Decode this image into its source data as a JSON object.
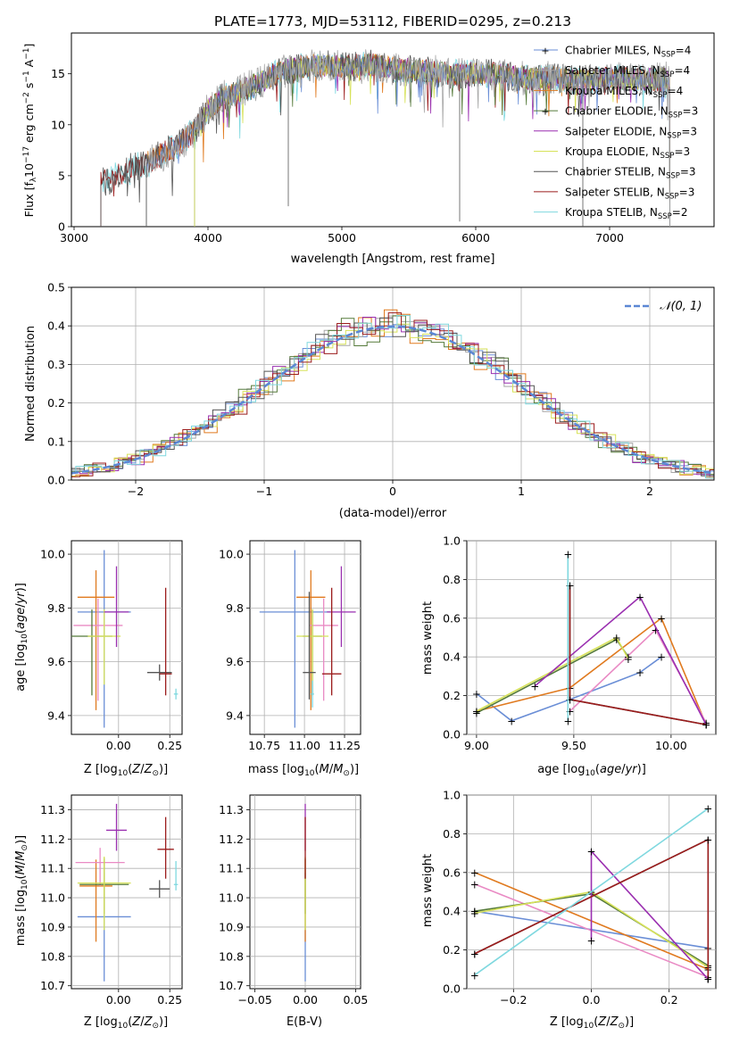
{
  "figure": {
    "title": "PLATE=1773, MJD=53112, FIBERID=0295, z=0.213"
  },
  "legend": {
    "series": [
      {
        "label": "Chabrier MILES, N",
        "sub": "SSP",
        "tail": "=4",
        "color": "#6a8ed6"
      },
      {
        "label": "Salpeter MILES, N",
        "sub": "SSP",
        "tail": "=4",
        "color": "#a7a7a7"
      },
      {
        "label": "Kroupa MILES, N",
        "sub": "SSP",
        "tail": "=4",
        "color": "#e07a1f"
      },
      {
        "label": "Chabrier ELODIE, N",
        "sub": "SSP",
        "tail": "=3",
        "color": "#557a3a"
      },
      {
        "label": "Salpeter ELODIE, N",
        "sub": "SSP",
        "tail": "=3",
        "color": "#9a2fb0"
      },
      {
        "label": "Kroupa ELODIE, N",
        "sub": "SSP",
        "tail": "=3",
        "color": "#d7e25a"
      },
      {
        "label": "Chabrier STELIB, N",
        "sub": "SSP",
        "tail": "=3",
        "color": "#555555"
      },
      {
        "label": "Salpeter STELIB, N",
        "sub": "SSP",
        "tail": "=3",
        "color": "#9b1c1c"
      },
      {
        "label": "Kroupa STELIB, N",
        "sub": "SSP",
        "tail": "=2",
        "color": "#7fd8df"
      }
    ],
    "normal_label": "𝒩(0, 1)"
  },
  "chart_data": [
    {
      "type": "line",
      "name": "spectrum",
      "xlabel": "wavelength [Angstrom, rest frame]",
      "ylabel": "Flux [f_λ10^-17 erg cm^-2 s^-1 A^-1]",
      "xlim": [
        2980,
        7780
      ],
      "ylim": [
        0,
        19
      ],
      "xticks": [
        3000,
        4000,
        5000,
        6000,
        7000
      ],
      "yticks": [
        0,
        5,
        10,
        15
      ],
      "profile": [
        [
          3200,
          4.2
        ],
        [
          3300,
          4.9
        ],
        [
          3400,
          5.7
        ],
        [
          3500,
          6.0
        ],
        [
          3600,
          6.7
        ],
        [
          3700,
          7.4
        ],
        [
          3800,
          8.2
        ],
        [
          3900,
          9.5
        ],
        [
          4000,
          11.5
        ],
        [
          4100,
          12.6
        ],
        [
          4200,
          13.0
        ],
        [
          4300,
          13.7
        ],
        [
          4400,
          14.2
        ],
        [
          4500,
          15.0
        ],
        [
          4600,
          15.4
        ],
        [
          4700,
          15.7
        ],
        [
          4800,
          15.8
        ],
        [
          4900,
          15.8
        ],
        [
          5000,
          15.6
        ],
        [
          5200,
          15.9
        ],
        [
          5400,
          15.5
        ],
        [
          5600,
          15.3
        ],
        [
          5800,
          15.0
        ],
        [
          6000,
          15.1
        ],
        [
          6200,
          14.9
        ],
        [
          6400,
          14.5
        ],
        [
          6600,
          14.6
        ],
        [
          6800,
          14.3
        ],
        [
          7000,
          14.6
        ],
        [
          7200,
          14.4
        ],
        [
          7400,
          14.5
        ]
      ]
    },
    {
      "type": "histogram",
      "name": "residuals",
      "xlabel": "(data-model)/error",
      "ylabel": "Normed distribution",
      "xlim": [
        -2.5,
        2.5
      ],
      "ylim": [
        0,
        0.5
      ],
      "xticks": [
        -2,
        -1,
        0,
        1,
        2
      ],
      "yticks": [
        0,
        0.1,
        0.2,
        0.3,
        0.4,
        0.5
      ],
      "bin_width": 0.1,
      "normal": {
        "mean": 0,
        "sd": 1
      }
    },
    {
      "type": "errorbar",
      "name": "age_vs_Z",
      "xlabel": "Z [log10(Z/Z⊙)]",
      "ylabel": "age [log10(age/yr)]",
      "xlim": [
        -0.23,
        0.31
      ],
      "ylim": [
        9.33,
        10.05
      ],
      "xticks": [
        0.0,
        0.25
      ],
      "yticks": [
        9.4,
        9.6,
        9.8,
        10.0
      ],
      "points": [
        {
          "x": -0.07,
          "y": 9.785,
          "xerr": 0.13,
          "yerr": [
            0.43,
            0.23
          ],
          "color": "#6a8ed6"
        },
        {
          "x": -0.11,
          "y": 9.84,
          "xerr": 0.09,
          "yerr": [
            0.42,
            0.1
          ],
          "color": "#e07a1f"
        },
        {
          "x": -0.1,
          "y": 9.735,
          "xerr": 0.12,
          "yerr": [
            0.28,
            0.1
          ],
          "color": "#e98ac4"
        },
        {
          "x": -0.13,
          "y": 9.695,
          "xerr": 0.1,
          "yerr": [
            0.22,
            0.1
          ],
          "color": "#557a3a"
        },
        {
          "x": -0.07,
          "y": 9.695,
          "xerr": 0.08,
          "yerr": [
            0.18,
            0.1
          ],
          "color": "#d7e25a"
        },
        {
          "x": -0.01,
          "y": 9.785,
          "xerr": 0.06,
          "yerr": [
            0.13,
            0.17
          ],
          "color": "#9a2fb0"
        },
        {
          "x": 0.2,
          "y": 9.56,
          "xerr": 0.06,
          "yerr": [
            0.03,
            0.03
          ],
          "color": "#555555"
        },
        {
          "x": 0.23,
          "y": 9.555,
          "xerr": 0.03,
          "yerr": [
            0.08,
            0.32
          ],
          "color": "#9b1c1c"
        },
        {
          "x": 0.28,
          "y": 9.48,
          "xerr": 0.01,
          "yerr": [
            0.02,
            0.02
          ],
          "color": "#7fd8df"
        }
      ]
    },
    {
      "type": "errorbar",
      "name": "age_vs_mass",
      "xlabel": "mass [log10(M/M⊙)]",
      "ylabel": "",
      "xlim": [
        10.66,
        11.35
      ],
      "ylim": [
        9.33,
        10.05
      ],
      "xticks": [
        10.75,
        11.0,
        11.25
      ],
      "yticks": [
        9.4,
        9.6,
        9.8,
        10.0
      ],
      "points": [
        {
          "x": 10.94,
          "y": 9.785,
          "xerr": 0.22,
          "yerr": [
            0.43,
            0.23
          ],
          "color": "#6a8ed6"
        },
        {
          "x": 11.04,
          "y": 9.84,
          "xerr": 0.09,
          "yerr": [
            0.42,
            0.1
          ],
          "color": "#e07a1f"
        },
        {
          "x": 11.12,
          "y": 9.735,
          "xerr": 0.09,
          "yerr": [
            0.28,
            0.1
          ],
          "color": "#e98ac4"
        },
        {
          "x": 11.05,
          "y": 9.695,
          "xerr": 0.06,
          "yerr": [
            0.22,
            0.1
          ],
          "color": "#557a3a"
        },
        {
          "x": 11.05,
          "y": 9.695,
          "xerr": 0.1,
          "yerr": [
            0.18,
            0.1
          ],
          "color": "#d7e25a"
        },
        {
          "x": 11.23,
          "y": 9.785,
          "xerr": 0.09,
          "yerr": [
            0.13,
            0.17
          ],
          "color": "#9a2fb0"
        },
        {
          "x": 11.03,
          "y": 9.56,
          "xerr": 0.04,
          "yerr": [
            0.1,
            0.3
          ],
          "color": "#555555"
        },
        {
          "x": 11.17,
          "y": 9.555,
          "xerr": 0.06,
          "yerr": [
            0.08,
            0.32
          ],
          "color": "#9b1c1c"
        },
        {
          "x": 11.05,
          "y": 9.48,
          "xerr": 0.01,
          "yerr": [
            0.05,
            0.05
          ],
          "color": "#7fd8df"
        }
      ]
    },
    {
      "type": "line",
      "name": "weight_vs_age",
      "xlabel": "age [log10(age/yr)]",
      "ylabel": "mass weight",
      "xlim": [
        8.95,
        10.23
      ],
      "ylim": [
        0,
        1.0
      ],
      "xticks": [
        9.0,
        9.5,
        10.0
      ],
      "yticks": [
        0,
        0.2,
        0.4,
        0.6,
        0.8,
        1.0
      ],
      "series": [
        {
          "color": "#6a8ed6",
          "points": [
            [
              9.0,
              0.21
            ],
            [
              9.18,
              0.07
            ],
            [
              9.48,
              0.18
            ],
            [
              9.84,
              0.32
            ],
            [
              9.95,
              0.4
            ]
          ]
        },
        {
          "color": "#e07a1f",
          "points": [
            [
              9.0,
              0.12
            ],
            [
              9.48,
              0.24
            ],
            [
              9.95,
              0.6
            ],
            [
              10.18,
              0.05
            ]
          ]
        },
        {
          "color": "#e98ac4",
          "points": [
            [
              9.48,
              0.12
            ],
            [
              9.92,
              0.54
            ],
            [
              10.18,
              0.06
            ]
          ]
        },
        {
          "color": "#557a3a",
          "points": [
            [
              9.0,
              0.11
            ],
            [
              9.72,
              0.49
            ],
            [
              9.78,
              0.4
            ]
          ]
        },
        {
          "color": "#d7e25a",
          "points": [
            [
              9.0,
              0.12
            ],
            [
              9.72,
              0.5
            ],
            [
              9.78,
              0.39
            ]
          ]
        },
        {
          "color": "#9a2fb0",
          "points": [
            [
              9.3,
              0.25
            ],
            [
              9.84,
              0.71
            ],
            [
              10.18,
              0.05
            ]
          ]
        },
        {
          "color": "#555555",
          "points": [
            [
              9.48,
              0.77
            ],
            [
              9.48,
              0.18
            ],
            [
              10.18,
              0.05
            ]
          ]
        },
        {
          "color": "#9b1c1c",
          "points": [
            [
              9.48,
              0.77
            ],
            [
              9.48,
              0.18
            ],
            [
              10.18,
              0.05
            ]
          ]
        },
        {
          "color": "#7fd8df",
          "points": [
            [
              9.47,
              0.93
            ],
            [
              9.47,
              0.07
            ]
          ]
        }
      ]
    },
    {
      "type": "errorbar",
      "name": "mass_vs_Z",
      "xlabel": "Z [log10(Z/Z⊙)]",
      "ylabel": "mass [log10(M/M⊙)]",
      "xlim": [
        -0.23,
        0.31
      ],
      "ylim": [
        10.69,
        11.35
      ],
      "xticks": [
        0.0,
        0.25
      ],
      "yticks": [
        10.7,
        10.8,
        10.9,
        11.0,
        11.1,
        11.2,
        11.3
      ],
      "points": [
        {
          "x": -0.07,
          "y": 10.935,
          "xerr": 0.13,
          "yerr": [
            0.22,
            0.15
          ],
          "color": "#6a8ed6"
        },
        {
          "x": -0.11,
          "y": 11.04,
          "xerr": 0.08,
          "yerr": [
            0.19,
            0.09
          ],
          "color": "#e07a1f"
        },
        {
          "x": -0.09,
          "y": 11.12,
          "xerr": 0.12,
          "yerr": [
            0.08,
            0.05
          ],
          "color": "#e98ac4"
        },
        {
          "x": -0.07,
          "y": 11.045,
          "xerr": 0.12,
          "yerr": [
            0.1,
            0.09
          ],
          "color": "#557a3a"
        },
        {
          "x": -0.07,
          "y": 11.05,
          "xerr": 0.13,
          "yerr": [
            0.16,
            0.09
          ],
          "color": "#d7e25a"
        },
        {
          "x": -0.01,
          "y": 11.23,
          "xerr": 0.05,
          "yerr": [
            0.07,
            0.09
          ],
          "color": "#9a2fb0"
        },
        {
          "x": 0.2,
          "y": 11.03,
          "xerr": 0.05,
          "yerr": [
            0.03,
            0.03
          ],
          "color": "#555555"
        },
        {
          "x": 0.23,
          "y": 11.165,
          "xerr": 0.04,
          "yerr": [
            0.1,
            0.11
          ],
          "color": "#9b1c1c"
        },
        {
          "x": 0.28,
          "y": 11.045,
          "xerr": 0.01,
          "yerr": [
            0.02,
            0.08
          ],
          "color": "#7fd8df"
        }
      ]
    },
    {
      "type": "errorbar",
      "name": "mass_vs_ebv",
      "xlabel": "E(B-V)",
      "ylabel": "",
      "xlim": [
        -0.055,
        0.055
      ],
      "ylim": [
        10.69,
        11.35
      ],
      "xticks": [
        -0.05,
        0.0,
        0.05
      ],
      "yticks": [
        10.7,
        10.8,
        10.9,
        11.0,
        11.1,
        11.2,
        11.3
      ],
      "points": [
        {
          "x": 0.0,
          "y": 10.935,
          "xerr": 0,
          "yerr": [
            0.22,
            0.15
          ],
          "color": "#6a8ed6"
        },
        {
          "x": 0.0,
          "y": 11.04,
          "xerr": 0,
          "yerr": [
            0.19,
            0.09
          ],
          "color": "#e07a1f"
        },
        {
          "x": 0.0,
          "y": 11.045,
          "xerr": 0,
          "yerr": [
            0.1,
            0.09
          ],
          "color": "#557a3a"
        },
        {
          "x": 0.0,
          "y": 11.05,
          "xerr": 0,
          "yerr": [
            0.16,
            0.09
          ],
          "color": "#d7e25a"
        },
        {
          "x": 0.0,
          "y": 11.23,
          "xerr": 0,
          "yerr": [
            0.07,
            0.09
          ],
          "color": "#9a2fb0"
        },
        {
          "x": 0.0,
          "y": 11.165,
          "xerr": 0,
          "yerr": [
            0.1,
            0.11
          ],
          "color": "#9b1c1c"
        }
      ]
    },
    {
      "type": "line",
      "name": "weight_vs_Z",
      "xlabel": "Z [log10(Z/Z⊙)]",
      "ylabel": "mass weight",
      "xlim": [
        -0.32,
        0.32
      ],
      "ylim": [
        0,
        1.0
      ],
      "xticks": [
        -0.2,
        0.0,
        0.2
      ],
      "yticks": [
        0,
        0.2,
        0.4,
        0.6,
        0.8,
        1.0
      ],
      "series": [
        {
          "color": "#6a8ed6",
          "points": [
            [
              -0.3,
              0.4
            ],
            [
              0.3,
              0.21
            ]
          ]
        },
        {
          "color": "#e07a1f",
          "points": [
            [
              -0.3,
              0.6
            ],
            [
              0.3,
              0.1
            ]
          ]
        },
        {
          "color": "#e98ac4",
          "points": [
            [
              -0.3,
              0.54
            ],
            [
              0.3,
              0.06
            ]
          ]
        },
        {
          "color": "#557a3a",
          "points": [
            [
              -0.3,
              0.4
            ],
            [
              0.0,
              0.49
            ],
            [
              0.3,
              0.12
            ]
          ]
        },
        {
          "color": "#d7e25a",
          "points": [
            [
              -0.3,
              0.39
            ],
            [
              0.0,
              0.5
            ],
            [
              0.3,
              0.11
            ]
          ]
        },
        {
          "color": "#9a2fb0",
          "points": [
            [
              0.0,
              0.25
            ],
            [
              0.0,
              0.71
            ],
            [
              0.3,
              0.05
            ]
          ]
        },
        {
          "color": "#555555",
          "points": [
            [
              -0.3,
              0.18
            ],
            [
              0.3,
              0.77
            ],
            [
              0.3,
              0.05
            ]
          ]
        },
        {
          "color": "#9b1c1c",
          "points": [
            [
              -0.3,
              0.18
            ],
            [
              0.3,
              0.77
            ],
            [
              0.3,
              0.05
            ]
          ]
        },
        {
          "color": "#7fd8df",
          "points": [
            [
              -0.3,
              0.07
            ],
            [
              0.3,
              0.93
            ]
          ]
        }
      ]
    }
  ]
}
